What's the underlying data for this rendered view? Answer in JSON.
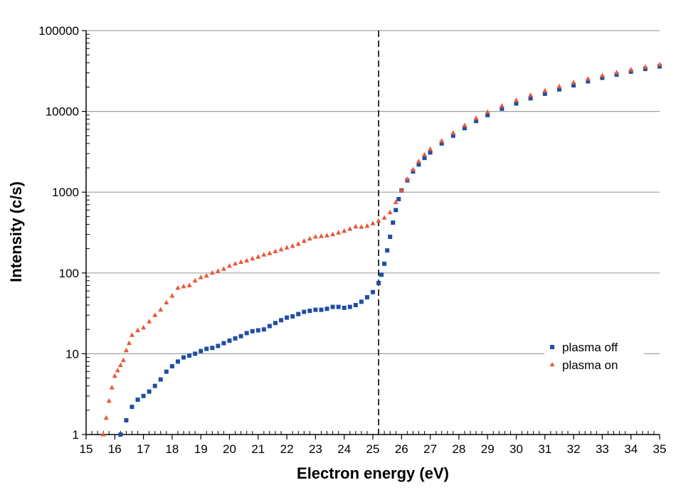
{
  "chart_data": {
    "type": "scatter",
    "title": "",
    "xlabel": "Electron energy (eV)",
    "ylabel": "Intensity (c/s)",
    "x_scale": "linear",
    "y_scale": "log",
    "xlim": [
      15,
      35
    ],
    "ylim": [
      1,
      100000
    ],
    "x_ticks": [
      "15",
      "16",
      "17",
      "18",
      "19",
      "20",
      "21",
      "22",
      "23",
      "24",
      "25",
      "26",
      "27",
      "28",
      "29",
      "30",
      "31",
      "32",
      "33",
      "34",
      "35"
    ],
    "y_ticks": [
      "1",
      "10",
      "100",
      "1000",
      "10000",
      "100000"
    ],
    "grid": "horizontal major lines",
    "legend_position": "bottom-right",
    "reference_line": {
      "x": 25.2,
      "style": "dashed",
      "color": "#000000"
    },
    "series": [
      {
        "name": "plasma off",
        "marker": "square",
        "color": "#1f4ea3",
        "points": [
          [
            16.2,
            1.0
          ],
          [
            16.4,
            1.5
          ],
          [
            16.6,
            2.2
          ],
          [
            16.8,
            2.7
          ],
          [
            17.0,
            3.0
          ],
          [
            17.2,
            3.4
          ],
          [
            17.4,
            4.0
          ],
          [
            17.6,
            4.8
          ],
          [
            17.8,
            6.0
          ],
          [
            18.0,
            7.0
          ],
          [
            18.2,
            8.0
          ],
          [
            18.4,
            9.0
          ],
          [
            18.6,
            9.5
          ],
          [
            18.8,
            10.0
          ],
          [
            19.0,
            10.8
          ],
          [
            19.2,
            11.5
          ],
          [
            19.4,
            11.8
          ],
          [
            19.6,
            12.5
          ],
          [
            19.8,
            13.5
          ],
          [
            20.0,
            14.5
          ],
          [
            20.2,
            15.5
          ],
          [
            20.4,
            16.5
          ],
          [
            20.6,
            18.0
          ],
          [
            20.8,
            19.0
          ],
          [
            21.0,
            19.5
          ],
          [
            21.2,
            20.0
          ],
          [
            21.4,
            22.0
          ],
          [
            21.6,
            24.0
          ],
          [
            21.8,
            26.0
          ],
          [
            22.0,
            28.0
          ],
          [
            22.2,
            29.0
          ],
          [
            22.4,
            31.0
          ],
          [
            22.6,
            33.0
          ],
          [
            22.8,
            34.0
          ],
          [
            23.0,
            35.0
          ],
          [
            23.2,
            35.0
          ],
          [
            23.4,
            36.0
          ],
          [
            23.6,
            38.0
          ],
          [
            23.8,
            38.0
          ],
          [
            24.0,
            37.0
          ],
          [
            24.2,
            38.0
          ],
          [
            24.4,
            40.0
          ],
          [
            24.6,
            44.0
          ],
          [
            24.8,
            50.0
          ],
          [
            25.0,
            58.0
          ],
          [
            25.2,
            75.0
          ],
          [
            25.3,
            95.0
          ],
          [
            25.4,
            130.0
          ],
          [
            25.5,
            190.0
          ],
          [
            25.6,
            280.0
          ],
          [
            25.7,
            420.0
          ],
          [
            25.8,
            600.0
          ],
          [
            25.9,
            820.0
          ],
          [
            26.0,
            1050.0
          ],
          [
            26.2,
            1400.0
          ],
          [
            26.4,
            1800.0
          ],
          [
            26.6,
            2200.0
          ],
          [
            26.8,
            2650.0
          ],
          [
            27.0,
            3100.0
          ],
          [
            27.4,
            4000.0
          ],
          [
            27.8,
            5000.0
          ],
          [
            28.2,
            6200.0
          ],
          [
            28.6,
            7600.0
          ],
          [
            29.0,
            9000.0
          ],
          [
            29.5,
            10800.0
          ],
          [
            30.0,
            12500.0
          ],
          [
            30.5,
            14500.0
          ],
          [
            31.0,
            16500.0
          ],
          [
            31.5,
            18700.0
          ],
          [
            32.0,
            21000.0
          ],
          [
            32.5,
            23500.0
          ],
          [
            33.0,
            26000.0
          ],
          [
            33.5,
            28500.0
          ],
          [
            34.0,
            31000.0
          ],
          [
            34.5,
            33500.0
          ],
          [
            35.0,
            36000.0
          ]
        ]
      },
      {
        "name": "plasma on",
        "marker": "triangle",
        "color": "#e8583a",
        "points": [
          [
            15.6,
            1.0
          ],
          [
            15.7,
            1.6
          ],
          [
            15.8,
            2.6
          ],
          [
            15.9,
            3.8
          ],
          [
            16.0,
            5.3
          ],
          [
            16.1,
            6.2
          ],
          [
            16.2,
            7.2
          ],
          [
            16.3,
            8.3
          ],
          [
            16.4,
            11.0
          ],
          [
            16.5,
            13.5
          ],
          [
            16.6,
            17.0
          ],
          [
            16.8,
            19.5
          ],
          [
            17.0,
            21.0
          ],
          [
            17.2,
            25.0
          ],
          [
            17.4,
            30.0
          ],
          [
            17.6,
            35.0
          ],
          [
            17.8,
            43.0
          ],
          [
            18.0,
            52.0
          ],
          [
            18.2,
            65.0
          ],
          [
            18.4,
            68.0
          ],
          [
            18.6,
            70.0
          ],
          [
            18.8,
            80.0
          ],
          [
            19.0,
            88.0
          ],
          [
            19.2,
            92.0
          ],
          [
            19.4,
            100.0
          ],
          [
            19.6,
            105.0
          ],
          [
            19.8,
            112.0
          ],
          [
            20.0,
            122.0
          ],
          [
            20.2,
            130.0
          ],
          [
            20.4,
            136.0
          ],
          [
            20.6,
            142.0
          ],
          [
            20.8,
            150.0
          ],
          [
            21.0,
            158.0
          ],
          [
            21.2,
            168.0
          ],
          [
            21.4,
            175.0
          ],
          [
            21.6,
            185.0
          ],
          [
            21.8,
            195.0
          ],
          [
            22.0,
            205.0
          ],
          [
            22.2,
            215.0
          ],
          [
            22.4,
            228.0
          ],
          [
            22.6,
            248.0
          ],
          [
            22.8,
            265.0
          ],
          [
            23.0,
            280.0
          ],
          [
            23.2,
            285.0
          ],
          [
            23.4,
            290.0
          ],
          [
            23.6,
            300.0
          ],
          [
            23.8,
            315.0
          ],
          [
            24.0,
            330.0
          ],
          [
            24.2,
            350.0
          ],
          [
            24.4,
            375.0
          ],
          [
            24.6,
            370.0
          ],
          [
            24.8,
            380.0
          ],
          [
            25.0,
            410.0
          ],
          [
            25.2,
            440.0
          ],
          [
            25.4,
            480.0
          ],
          [
            25.6,
            560.0
          ],
          [
            25.8,
            750.0
          ],
          [
            26.0,
            1050.0
          ],
          [
            26.2,
            1450.0
          ],
          [
            26.4,
            1900.0
          ],
          [
            26.6,
            2400.0
          ],
          [
            26.8,
            2900.0
          ],
          [
            27.0,
            3400.0
          ],
          [
            27.4,
            4300.0
          ],
          [
            27.8,
            5400.0
          ],
          [
            28.2,
            6700.0
          ],
          [
            28.6,
            8200.0
          ],
          [
            29.0,
            9800.0
          ],
          [
            29.5,
            11700.0
          ],
          [
            30.0,
            13700.0
          ],
          [
            30.5,
            15800.0
          ],
          [
            31.0,
            18000.0
          ],
          [
            31.5,
            20300.0
          ],
          [
            32.0,
            22700.0
          ],
          [
            32.5,
            25200.0
          ],
          [
            33.0,
            27700.0
          ],
          [
            33.5,
            30200.0
          ],
          [
            34.0,
            32800.0
          ],
          [
            34.5,
            35400.0
          ],
          [
            35.0,
            38000.0
          ]
        ]
      }
    ]
  }
}
